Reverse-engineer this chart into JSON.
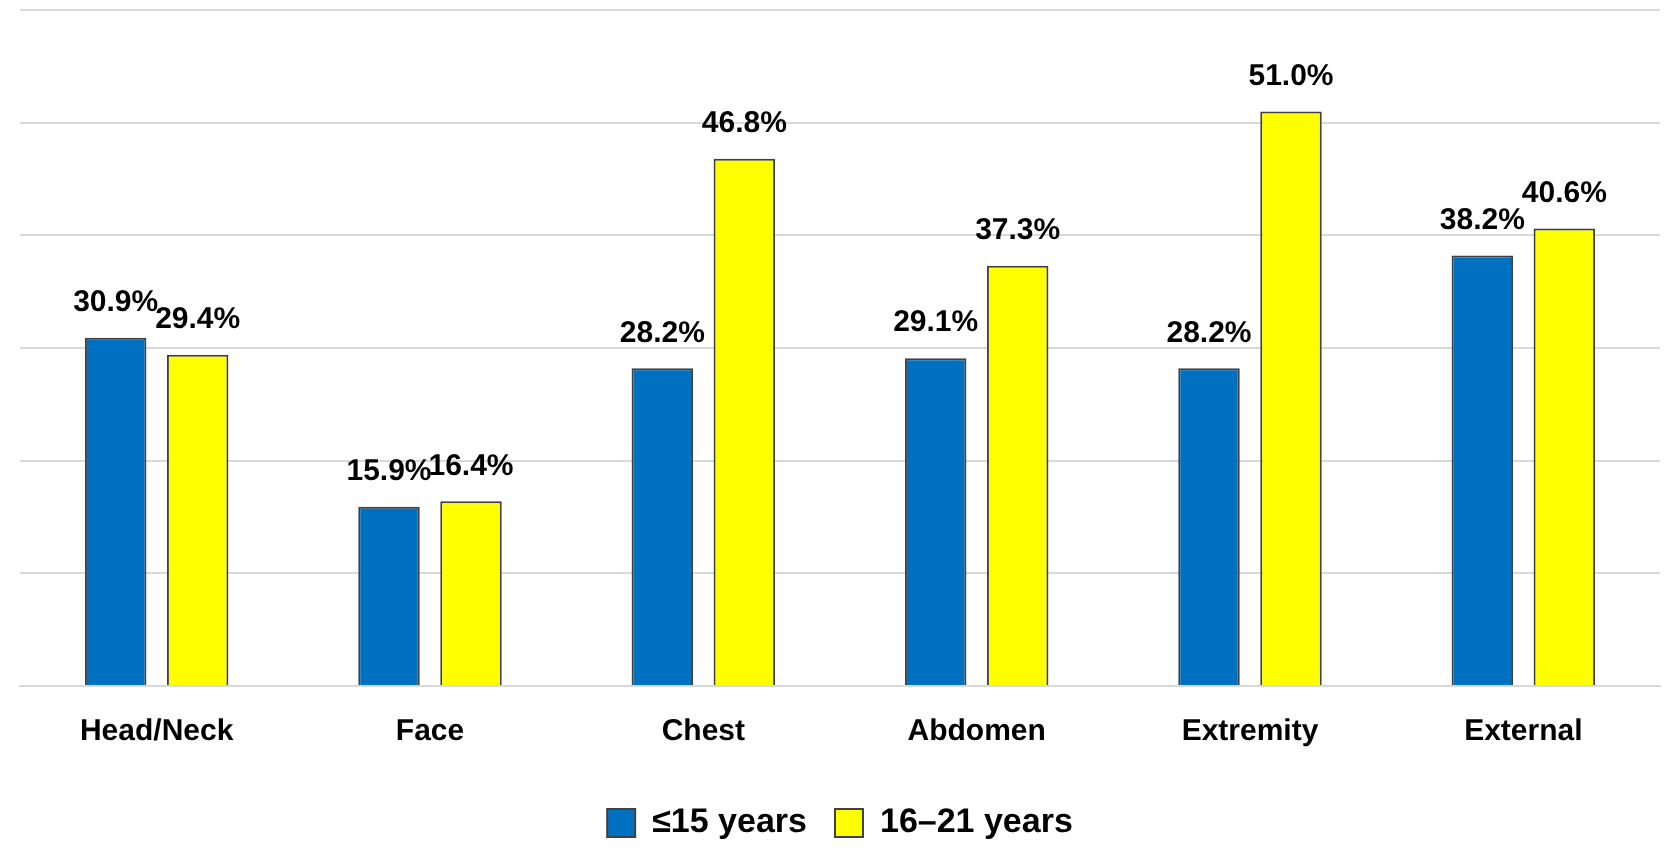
{
  "chart_data": {
    "type": "bar",
    "categories": [
      "Head/Neck",
      "Face",
      "Chest",
      "Abdomen",
      "Extremity",
      "External"
    ],
    "series": [
      {
        "name": "≤15 years",
        "color": "#0070c0",
        "values": [
          30.9,
          15.9,
          28.2,
          29.1,
          28.2,
          38.2
        ],
        "value_labels": [
          "30.9%",
          "15.9%",
          "28.2%",
          "29.1%",
          "28.2%",
          "38.2%"
        ]
      },
      {
        "name": "16–21 years",
        "color": "#ffff00",
        "values": [
          29.4,
          16.4,
          46.8,
          37.3,
          51.0,
          40.6
        ],
        "value_labels": [
          "29.4%",
          "16.4%",
          "46.8%",
          "37.3%",
          "51.0%",
          "40.6%"
        ]
      }
    ],
    "ylim": [
      0,
      60
    ],
    "yticks": [
      {
        "value": 0,
        "label": null
      },
      {
        "value": 10,
        "label": null
      },
      {
        "value": 20,
        "label": null
      },
      {
        "value": 30,
        "label": null
      },
      {
        "value": 40,
        "label": null
      },
      {
        "value": 50,
        "label": null
      },
      {
        "value": 60,
        "label": null
      }
    ],
    "grid": "y",
    "tick_labels": "x",
    "legend": "bottom"
  }
}
